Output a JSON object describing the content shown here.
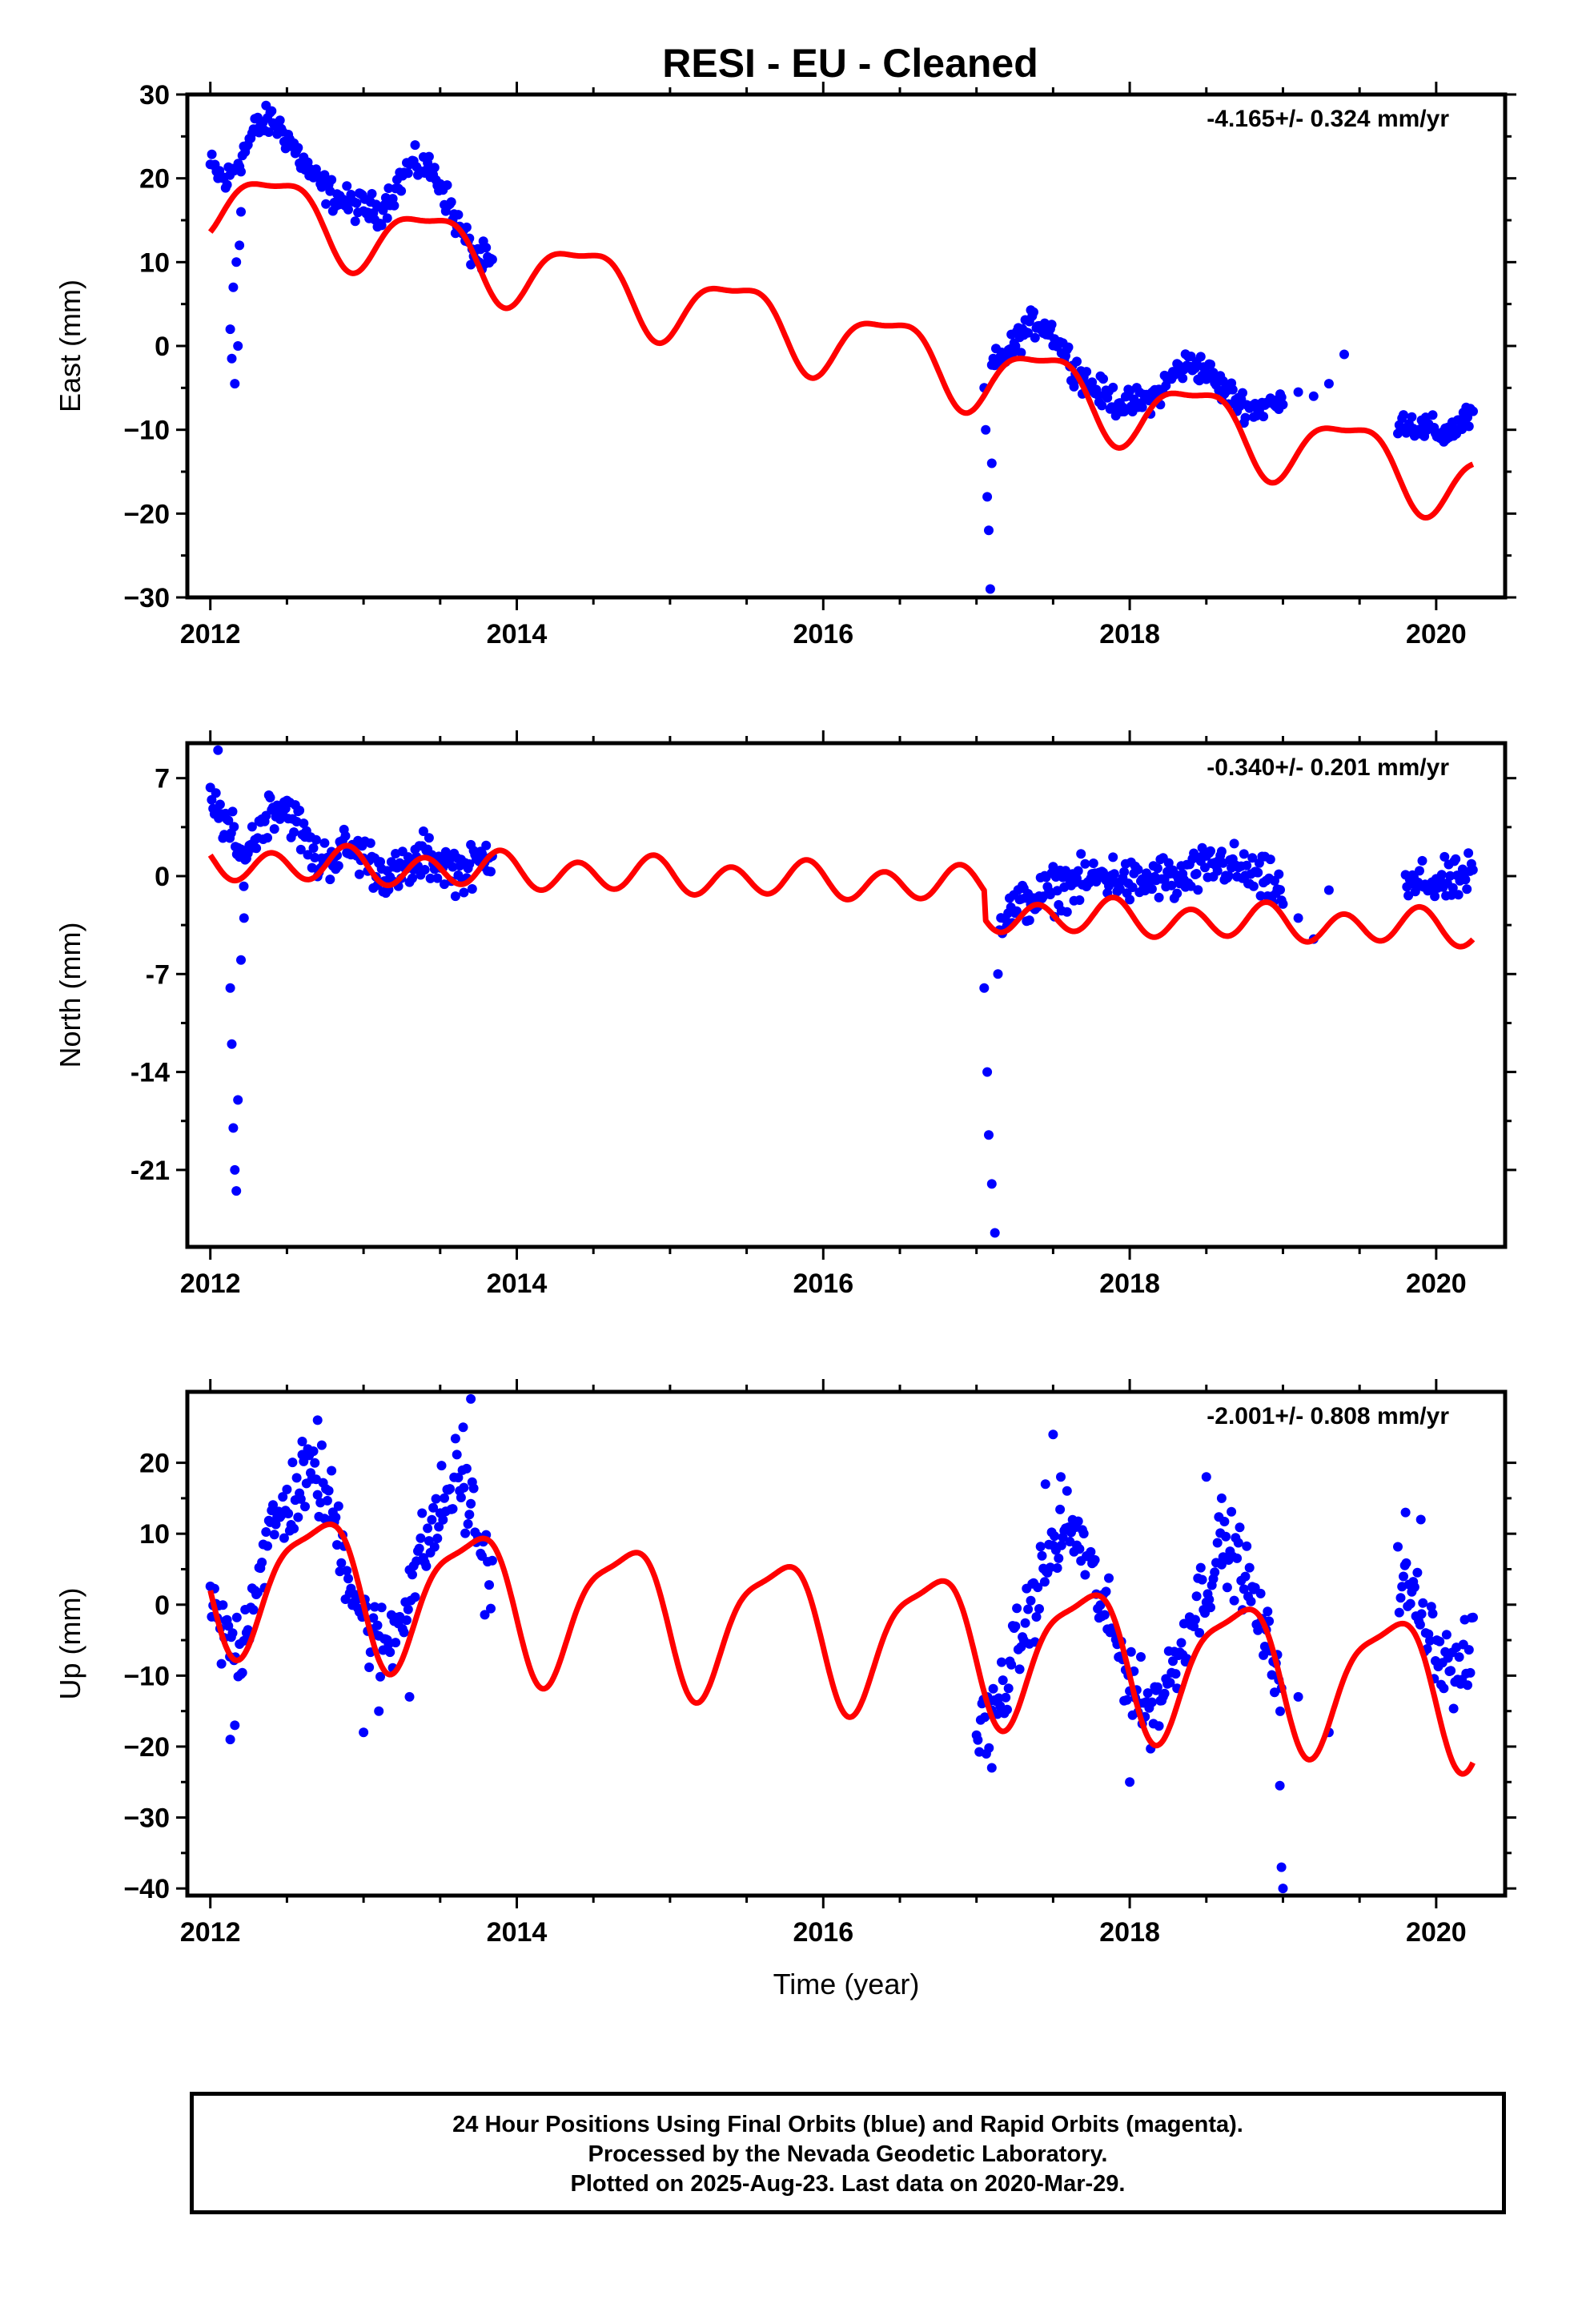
{
  "title": "RESI  - EU - Cleaned",
  "colors": {
    "observations": "#0000ff",
    "model": "#ff0000",
    "frame": "#000000"
  },
  "chart_data": [
    {
      "type": "scatter",
      "component": "east",
      "ylabel": "East (mm)",
      "rate_label": "-4.165+/- 0.324 mm/yr",
      "xlim": [
        2011.85,
        2020.45
      ],
      "ylim": [
        -30,
        30
      ],
      "xticks": [
        "2012",
        "2014",
        "2016",
        "2018",
        "2020"
      ],
      "yticks": [
        "30",
        "20",
        "10",
        "0",
        "−10",
        "−20",
        "−30"
      ],
      "ytick_values": [
        30,
        20,
        10,
        0,
        -10,
        -20,
        -30
      ],
      "model": {
        "name": "fit",
        "x0": 2012.0,
        "offset": 18.0,
        "trend": -4.165,
        "annual_cos": -3.8,
        "annual_sin": 1.7,
        "semi_cos": -0.6,
        "semi_sin": 1.2,
        "jumps": [
          [
            2017.05,
            0.0
          ]
        ]
      },
      "series": [
        {
          "name": "",
          "style": "segment",
          "x": [
            2012.0,
            2012.05,
            2012.1,
            2012.2,
            2012.3,
            2012.4,
            2012.5,
            2012.6,
            2012.7,
            2012.8,
            2012.9,
            2013.0,
            2013.1,
            2013.2,
            2013.3,
            2013.4,
            2013.5,
            2013.6,
            2013.7,
            2013.8,
            2013.85
          ],
          "y": [
            21.5,
            20.5,
            19.5,
            22.5,
            26,
            27,
            25,
            22,
            19.5,
            18,
            17,
            16.5,
            16,
            18.5,
            21.5,
            21.5,
            19.5,
            15,
            11.5,
            10,
            9.5
          ],
          "spread": 1.6
        },
        {
          "name": "",
          "style": "segment",
          "x": [
            2017.1,
            2017.2,
            2017.3,
            2017.4,
            2017.5,
            2017.6,
            2017.7,
            2017.8,
            2017.9,
            2018.0,
            2018.1,
            2018.2,
            2018.3,
            2018.4,
            2018.5,
            2018.6,
            2018.7,
            2018.8,
            2018.9,
            2019.0
          ],
          "y": [
            -2.5,
            -1,
            1.5,
            3,
            1.5,
            -1.5,
            -4,
            -5.5,
            -6.5,
            -7,
            -6.5,
            -5.5,
            -3,
            -2,
            -3,
            -5,
            -6.5,
            -7.5,
            -7,
            -7
          ],
          "spread": 1.5
        },
        {
          "name": "",
          "style": "segment",
          "x": [
            2019.75,
            2019.85,
            2019.95,
            2020.05,
            2020.15,
            2020.25
          ],
          "y": [
            -8.5,
            -9.5,
            -10,
            -10.5,
            -9.5,
            -8
          ],
          "spread": 1.4
        },
        {
          "name": "",
          "style": "points",
          "x": [
            2012.13,
            2012.14,
            2012.15,
            2012.16,
            2012.17,
            2012.18,
            2012.19,
            2012.2,
            2017.05,
            2017.06,
            2017.07,
            2017.08,
            2017.09,
            2017.1,
            2019.0,
            2019.1,
            2019.2,
            2019.3,
            2019.4
          ],
          "y": [
            2,
            -1.5,
            7,
            -4.5,
            10,
            0,
            12,
            16,
            -5,
            -10,
            -18,
            -22,
            -29,
            -14,
            -7,
            -5.5,
            -6,
            -4.5,
            -1
          ]
        }
      ]
    },
    {
      "type": "scatter",
      "component": "north",
      "ylabel": "North (mm)",
      "rate_label": "-0.340+/- 0.201 mm/yr",
      "xlim": [
        2011.85,
        2020.45
      ],
      "ylim": [
        -26.5,
        9.5
      ],
      "xticks": [
        "2012",
        "2014",
        "2016",
        "2018",
        "2020"
      ],
      "yticks": [
        "7",
        "0",
        "-7",
        "-14",
        "-21"
      ],
      "ytick_values": [
        7,
        0,
        -7,
        -14,
        -21
      ],
      "model": {
        "name": "fit",
        "x0": 2012.0,
        "offset": 1.0,
        "trend": -0.34,
        "annual_cos": 0.2,
        "annual_sin": -0.3,
        "semi_cos": 0.3,
        "semi_sin": -1.1,
        "jumps": [
          [
            2017.05,
            -2.0
          ]
        ]
      },
      "series": [
        {
          "name": "",
          "style": "segment",
          "x": [
            2012.0,
            2012.1,
            2012.2,
            2012.3,
            2012.4,
            2012.5,
            2012.6,
            2012.7,
            2012.8,
            2012.9,
            2013.0,
            2013.1,
            2013.2,
            2013.3,
            2013.4,
            2013.5,
            2013.6,
            2013.7,
            2013.8,
            2013.85
          ],
          "y": [
            5,
            4,
            1,
            3,
            5,
            5,
            3,
            1,
            1.5,
            2,
            1.5,
            0.5,
            0,
            0.5,
            1.5,
            1,
            0.5,
            0.5,
            1.5,
            2
          ],
          "spread": 1.4
        },
        {
          "name": "",
          "style": "segment",
          "x": [
            2017.15,
            2017.3,
            2017.4,
            2017.5,
            2017.6,
            2017.7,
            2017.8,
            2017.9,
            2018.0,
            2018.1,
            2018.2,
            2018.3,
            2018.4,
            2018.5,
            2018.6,
            2018.7,
            2018.8,
            2018.9,
            2019.0
          ],
          "y": [
            -3,
            -2,
            -1.5,
            -1,
            -0.5,
            -0.5,
            0,
            0,
            -0.5,
            -0.5,
            0,
            -0.5,
            0,
            0.5,
            1,
            0.5,
            0,
            -0.5,
            -1
          ],
          "spread": 1.4
        },
        {
          "name": "",
          "style": "segment",
          "x": [
            2019.8,
            2019.9,
            2020.0,
            2020.1,
            2020.2,
            2020.25
          ],
          "y": [
            -1,
            -0.5,
            -0.5,
            -0.5,
            0,
            0
          ],
          "spread": 1.3
        },
        {
          "name": "",
          "style": "points",
          "x": [
            2012.13,
            2012.14,
            2012.15,
            2012.16,
            2012.17,
            2012.18,
            2012.2,
            2012.22,
            2017.05,
            2017.07,
            2017.08,
            2017.1,
            2017.12,
            2017.14,
            2019.0,
            2019.1,
            2019.2,
            2019.3,
            2012.05
          ],
          "y": [
            -8,
            -12,
            -18,
            -21,
            -22.5,
            -16,
            -6,
            -3,
            -8,
            -14,
            -18.5,
            -22,
            -25.5,
            -7,
            -2,
            -3,
            -4.5,
            -1,
            9
          ]
        }
      ]
    },
    {
      "type": "scatter",
      "component": "up",
      "ylabel": "Up (mm)",
      "rate_label": "-2.001+/- 0.808 mm/yr",
      "xlabel": "Time (year)",
      "xlim": [
        2011.85,
        2020.45
      ],
      "ylim": [
        -41,
        30
      ],
      "xticks": [
        "2012",
        "2014",
        "2016",
        "2018",
        "2020"
      ],
      "yticks": [
        "20",
        "10",
        "0",
        "−10",
        "−20",
        "−30",
        "−40"
      ],
      "ytick_values": [
        20,
        10,
        0,
        -10,
        -20,
        -30,
        -40
      ],
      "model": {
        "name": "fit",
        "x0": 2012.0,
        "offset": 4.5,
        "trend": -2.0,
        "annual_cos": -3.3,
        "annual_sin": -9.0,
        "semi_cos": 0.8,
        "semi_sin": -2.5,
        "jumps": [
          [
            2017.05,
            0.0
          ]
        ]
      },
      "series": [
        {
          "name": "",
          "style": "segment",
          "x": [
            2012.0,
            2012.1,
            2012.2,
            2012.3,
            2012.4,
            2012.5,
            2012.6,
            2012.7,
            2012.8,
            2012.9,
            2013.0,
            2013.1,
            2013.2,
            2013.3,
            2013.4,
            2013.5,
            2013.6,
            2013.7,
            2013.8,
            2013.85
          ],
          "y": [
            0,
            -5,
            -6,
            4,
            10,
            14,
            17,
            18,
            13,
            5,
            -2,
            -6,
            -4,
            3,
            8,
            13,
            18,
            14,
            5,
            3
          ],
          "spread": 5.0
        },
        {
          "name": "",
          "style": "segment",
          "x": [
            2017.0,
            2017.1,
            2017.2,
            2017.3,
            2017.4,
            2017.5,
            2017.6,
            2017.7,
            2017.8,
            2017.9,
            2018.0,
            2018.1,
            2018.2,
            2018.3,
            2018.4,
            2018.5,
            2018.6,
            2018.7,
            2018.8,
            2018.9,
            2019.0
          ],
          "y": [
            -18,
            -16,
            -10,
            -4,
            2,
            8,
            11,
            8,
            1,
            -5,
            -10,
            -15,
            -13,
            -8,
            -2,
            3,
            8,
            7,
            1,
            -6,
            -10
          ],
          "spread": 4.5
        },
        {
          "name": "",
          "style": "segment",
          "x": [
            2019.75,
            2019.85,
            2019.95,
            2020.05,
            2020.15,
            2020.25
          ],
          "y": [
            3,
            1,
            -3,
            -8,
            -10,
            -6
          ],
          "spread": 4.5
        },
        {
          "name": "",
          "style": "points",
          "x": [
            2012.13,
            2012.16,
            2012.6,
            2012.7,
            2013.0,
            2013.1,
            2013.3,
            2013.65,
            2013.7,
            2017.1,
            2017.45,
            2017.5,
            2017.55,
            2018.0,
            2018.5,
            2018.6,
            2018.98,
            2018.99,
            2019.0,
            2019.1,
            2019.3,
            2019.8,
            2019.9
          ],
          "y": [
            -19,
            -17,
            23,
            26,
            -18,
            -15,
            -13,
            25,
            29,
            -23,
            17,
            24,
            18,
            -25,
            18,
            15,
            -25.5,
            -37,
            -40,
            -13,
            -18,
            13,
            12
          ]
        }
      ]
    }
  ],
  "footer": {
    "line1": "24 Hour Positions Using Final Orbits (blue) and Rapid Orbits (magenta).",
    "line2": "Processed by the Nevada Geodetic Laboratory.",
    "line3": "Plotted on 2025-Aug-23. Last data on 2020-Mar-29."
  }
}
